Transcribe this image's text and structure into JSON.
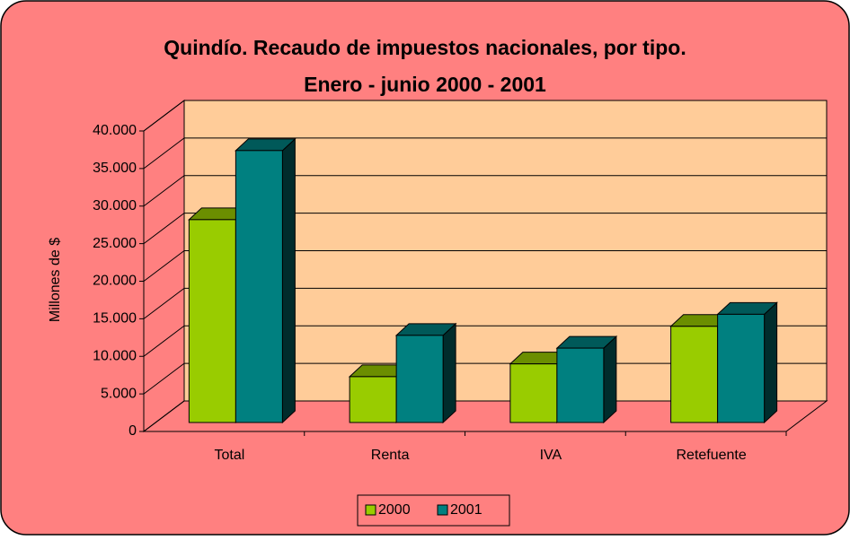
{
  "chart_data": {
    "type": "bar3d",
    "title": [
      "Quindío. Recaudo de impuestos nacionales, por tipo.",
      "Enero - junio 2000 - 2001"
    ],
    "y_label": "Millones de $",
    "categories": [
      "Total",
      "Renta",
      "IVA",
      "Retefuente"
    ],
    "series": [
      {
        "name": "2000",
        "color": "#99cc00",
        "values": [
          27000,
          6100,
          7800,
          12800
        ]
      },
      {
        "name": "2001",
        "color": "#008080",
        "values": [
          36200,
          11600,
          9900,
          14400
        ]
      }
    ],
    "ylim": [
      0,
      40000
    ],
    "yticks": [
      0,
      {
        "value": 5000,
        "label": "5.000"
      },
      {
        "value": 10000,
        "label": "10.000"
      },
      {
        "value": 15000,
        "label": "15.000"
      },
      {
        "value": 20000,
        "label": "20.000"
      },
      {
        "value": 25000,
        "label": "25.000"
      },
      {
        "value": 30000,
        "label": "30.000"
      },
      {
        "value": 35000,
        "label": "35.000"
      },
      {
        "value": 40000,
        "label": "40.000"
      }
    ],
    "grid": true,
    "legend": "bottom"
  }
}
